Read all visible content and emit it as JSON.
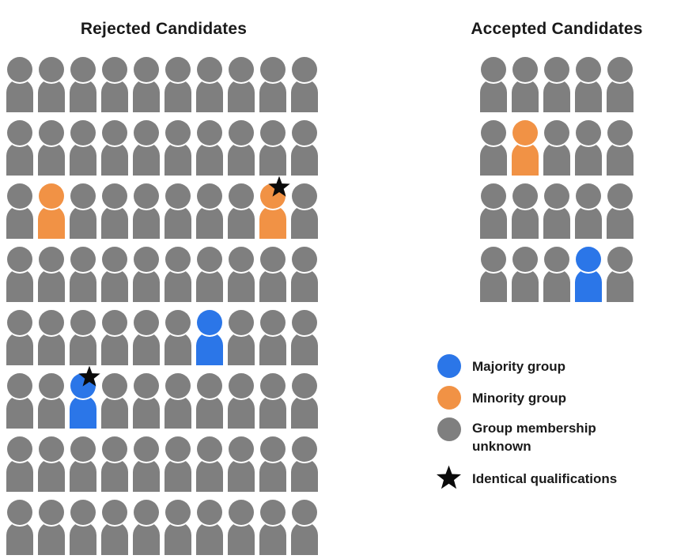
{
  "colors": {
    "majority": "#2B76E8",
    "minority": "#F19245",
    "unknown": "#7F7F7F",
    "star": "#0B0B0B",
    "text": "#1A1A1A"
  },
  "chart_data": {
    "type": "pictogram",
    "description_visible": false,
    "panels": [
      {
        "id": "rejected",
        "title": "Rejected Candidates",
        "columns": 10,
        "rows": 8,
        "total_icons": 80,
        "default_group": "unknown",
        "counts": {
          "majority": 2,
          "minority": 2,
          "unknown": 76,
          "starred": 2
        },
        "special_icons": [
          {
            "row": 2,
            "col": 1,
            "group": "minority",
            "star": false
          },
          {
            "row": 2,
            "col": 8,
            "group": "minority",
            "star": true
          },
          {
            "row": 4,
            "col": 6,
            "group": "majority",
            "star": false
          },
          {
            "row": 5,
            "col": 2,
            "group": "majority",
            "star": true
          }
        ]
      },
      {
        "id": "accepted",
        "title": "Accepted Candidates",
        "columns": 5,
        "rows": 4,
        "total_icons": 20,
        "default_group": "unknown",
        "counts": {
          "majority": 1,
          "minority": 1,
          "unknown": 18,
          "starred": 0
        },
        "special_icons": [
          {
            "row": 1,
            "col": 1,
            "group": "minority",
            "star": false
          },
          {
            "row": 3,
            "col": 3,
            "group": "majority",
            "star": false
          }
        ]
      }
    ],
    "legend": [
      {
        "swatch": "circle",
        "group": "majority",
        "label": "Majority group"
      },
      {
        "swatch": "circle",
        "group": "minority",
        "label": "Minority group"
      },
      {
        "swatch": "circle",
        "group": "unknown",
        "label": "Group membership unknown"
      },
      {
        "swatch": "star",
        "group": "star",
        "label": "Identical qualifications"
      }
    ]
  }
}
